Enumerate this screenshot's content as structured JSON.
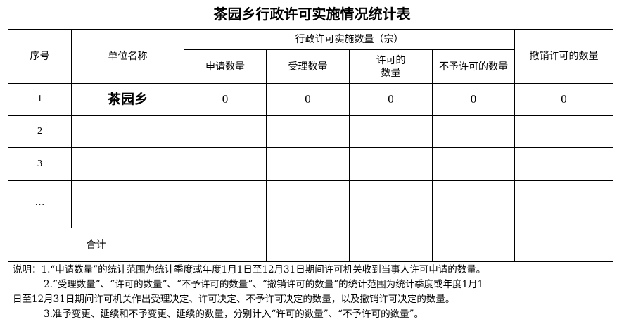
{
  "title": "茶园乡行政许可实施情况统计表",
  "table": {
    "headers": {
      "index": "序号",
      "unit_name": "单位名称",
      "group": "行政许可实施数量（宗）",
      "apply": "申请数量",
      "accept": "受理数量",
      "permit": "许可的数量",
      "deny": "不予许可的数量",
      "revoke": "撤销许可的数量"
    },
    "rows": [
      {
        "index": "1",
        "name": "茶园乡",
        "apply": "0",
        "accept": "0",
        "permit": "0",
        "deny": "0",
        "revoke": "0"
      },
      {
        "index": "2"
      },
      {
        "index": "3"
      },
      {
        "index": "…"
      }
    ],
    "total_label": "合计"
  },
  "notes": [
    "说明：1.“申请数量”的统计范围为统计季度或年度1月1日至12月31日期间许可机关收到当事人许可申请的数量。",
    "2.“受理数量”、“许可的数量”、“不予许可的数量”、“撤销许可的数量”的统计范围为统计季度或年度1月1",
    "日至12月31日期间许可机关作出受理决定、许可决定、不予许可决定的数量，以及撤销许可决定的数量。",
    "3.准予变更、延续和不予变更、延续的数量，分别计入“许可的数量”、“不予许可的数量”。"
  ]
}
